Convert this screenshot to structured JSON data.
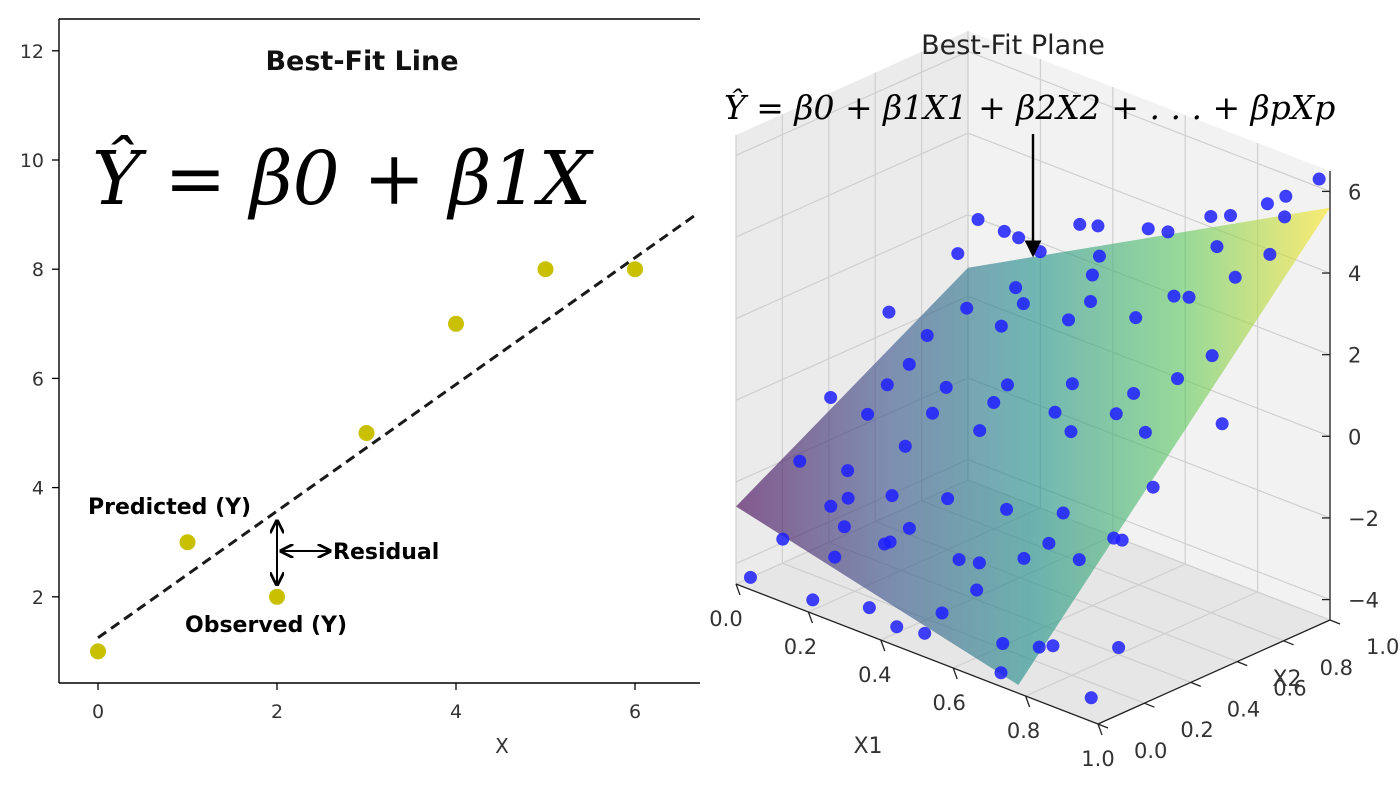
{
  "chart_data": [
    {
      "type": "scatter",
      "title": "Best-Fit Line",
      "equation": "Ŷ = β0 + β1X",
      "xlabel": "X",
      "ylabel": "",
      "xlim": [
        -0.4,
        6.7
      ],
      "ylim": [
        0.4,
        12.6
      ],
      "xticks": [
        "0",
        "2",
        "4",
        "6"
      ],
      "yticks": [
        "2",
        "4",
        "6",
        "8",
        "10",
        "12"
      ],
      "grid": false,
      "colors": {
        "points": "#c8c000",
        "line": "#1a1a1a",
        "text": "#111111"
      },
      "points": {
        "x": [
          0,
          1,
          2,
          3,
          4,
          5,
          6
        ],
        "y": [
          1,
          3,
          2,
          5,
          7,
          8,
          8
        ]
      },
      "fit_line": {
        "intercept": 1.25,
        "slope": 1.16,
        "style": "dashed"
      },
      "annotations": {
        "predicted": "Predicted (Y)",
        "residual": "Residual",
        "observed": "Observed (Y)"
      }
    },
    {
      "type": "scatter",
      "projection": "3d",
      "title": "Best-Fit Plane",
      "equation": "Ŷ = β0 + β1X1 + β2X2 + . . . + βpXp",
      "xlabel": "X1",
      "ylabel": "X2",
      "zlabel": "",
      "xlim": [
        0,
        1
      ],
      "ylim": [
        0,
        1
      ],
      "zlim": [
        -4.5,
        6.5
      ],
      "xticks": [
        "0.0",
        "0.2",
        "0.4",
        "0.6",
        "0.8",
        "1.0"
      ],
      "yticks": [
        "0.0",
        "0.2",
        "0.4",
        "0.6",
        "0.8",
        "1.0"
      ],
      "zticks": [
        "−4",
        "−2",
        "0",
        "2",
        "4",
        "6"
      ],
      "grid": true,
      "surface": {
        "colormap": "viridis",
        "alpha": 0.6
      },
      "colors": {
        "points": "#1f1fff"
      },
      "points": [
        [
          0.04,
          0.0,
          -4.2
        ],
        [
          0.11,
          0.03,
          -3.1
        ],
        [
          0.18,
          0.05,
          -4.4
        ],
        [
          0.26,
          0.02,
          -3.0
        ],
        [
          0.33,
          0.06,
          -4.1
        ],
        [
          0.4,
          0.04,
          -2.2
        ],
        [
          0.47,
          0.08,
          -4.3
        ],
        [
          0.55,
          0.03,
          -3.4
        ],
        [
          0.62,
          0.07,
          -2.7
        ],
        [
          0.7,
          0.05,
          -4.4
        ],
        [
          0.78,
          0.09,
          -3.6
        ],
        [
          0.85,
          0.04,
          -3.2
        ],
        [
          0.93,
          0.08,
          -4.3
        ],
        [
          0.98,
          0.12,
          -3.0
        ],
        [
          0.08,
          0.15,
          -1.6
        ],
        [
          0.14,
          0.19,
          -2.6
        ],
        [
          0.22,
          0.14,
          -2.0
        ],
        [
          0.29,
          0.22,
          -1.9
        ],
        [
          0.37,
          0.17,
          -2.3
        ],
        [
          0.45,
          0.21,
          -1.4
        ],
        [
          0.52,
          0.15,
          -2.5
        ],
        [
          0.6,
          0.23,
          -1.2
        ],
        [
          0.68,
          0.18,
          -2.0
        ],
        [
          0.75,
          0.24,
          -0.8
        ],
        [
          0.82,
          0.2,
          -1.6
        ],
        [
          0.9,
          0.26,
          -1.0
        ],
        [
          0.96,
          0.3,
          0.4
        ],
        [
          0.05,
          0.33,
          -0.6
        ],
        [
          0.12,
          0.38,
          -0.9
        ],
        [
          0.2,
          0.34,
          0.2
        ],
        [
          0.28,
          0.41,
          -0.4
        ],
        [
          0.35,
          0.36,
          0.6
        ],
        [
          0.43,
          0.44,
          0.3
        ],
        [
          0.5,
          0.39,
          1.1
        ],
        [
          0.58,
          0.47,
          0.5
        ],
        [
          0.66,
          0.42,
          1.6
        ],
        [
          0.73,
          0.5,
          0.9
        ],
        [
          0.81,
          0.45,
          1.8
        ],
        [
          0.88,
          0.53,
          2.2
        ],
        [
          0.95,
          0.57,
          2.9
        ],
        [
          0.07,
          0.55,
          1.0
        ],
        [
          0.15,
          0.59,
          0.6
        ],
        [
          0.24,
          0.62,
          1.5
        ],
        [
          0.31,
          0.66,
          1.2
        ],
        [
          0.39,
          0.63,
          2.1
        ],
        [
          0.47,
          0.7,
          1.8
        ],
        [
          0.55,
          0.67,
          2.6
        ],
        [
          0.63,
          0.74,
          2.3
        ],
        [
          0.71,
          0.78,
          3.0
        ],
        [
          0.79,
          0.72,
          3.4
        ],
        [
          0.86,
          0.81,
          3.9
        ],
        [
          0.93,
          0.85,
          4.6
        ],
        [
          0.1,
          0.8,
          1.9
        ],
        [
          0.19,
          0.86,
          2.6
        ],
        [
          0.27,
          0.89,
          2.3
        ],
        [
          0.36,
          0.92,
          3.2
        ],
        [
          0.44,
          0.88,
          2.8
        ],
        [
          0.53,
          0.95,
          3.6
        ],
        [
          0.61,
          0.91,
          3.9
        ],
        [
          0.69,
          0.97,
          4.4
        ],
        [
          0.77,
          0.93,
          4.8
        ],
        [
          0.84,
          0.98,
          5.2
        ],
        [
          0.91,
          0.95,
          5.7
        ],
        [
          0.97,
          1.0,
          6.2
        ],
        [
          0.03,
          0.7,
          -0.8
        ],
        [
          0.02,
          0.45,
          -2.8
        ],
        [
          0.16,
          0.48,
          -1.8
        ],
        [
          0.34,
          0.52,
          -0.9
        ],
        [
          0.56,
          0.57,
          -0.3
        ],
        [
          0.74,
          0.61,
          0.2
        ],
        [
          0.92,
          0.66,
          0.9
        ],
        [
          0.48,
          0.3,
          -3.1
        ],
        [
          0.64,
          0.35,
          -2.2
        ],
        [
          0.8,
          0.38,
          -1.6
        ],
        [
          0.25,
          0.25,
          -3.3
        ],
        [
          0.12,
          0.28,
          -3.4
        ],
        [
          0.38,
          0.1,
          -4.5
        ],
        [
          0.66,
          0.12,
          -4.0
        ],
        [
          0.5,
          0.78,
          4.0
        ],
        [
          0.3,
          0.75,
          3.1
        ],
        [
          0.88,
          0.7,
          5.0
        ],
        [
          0.99,
          0.82,
          5.8
        ],
        [
          0.6,
          0.6,
          3.6
        ],
        [
          0.42,
          0.55,
          2.8
        ],
        [
          0.22,
          0.7,
          3.4
        ]
      ]
    }
  ]
}
